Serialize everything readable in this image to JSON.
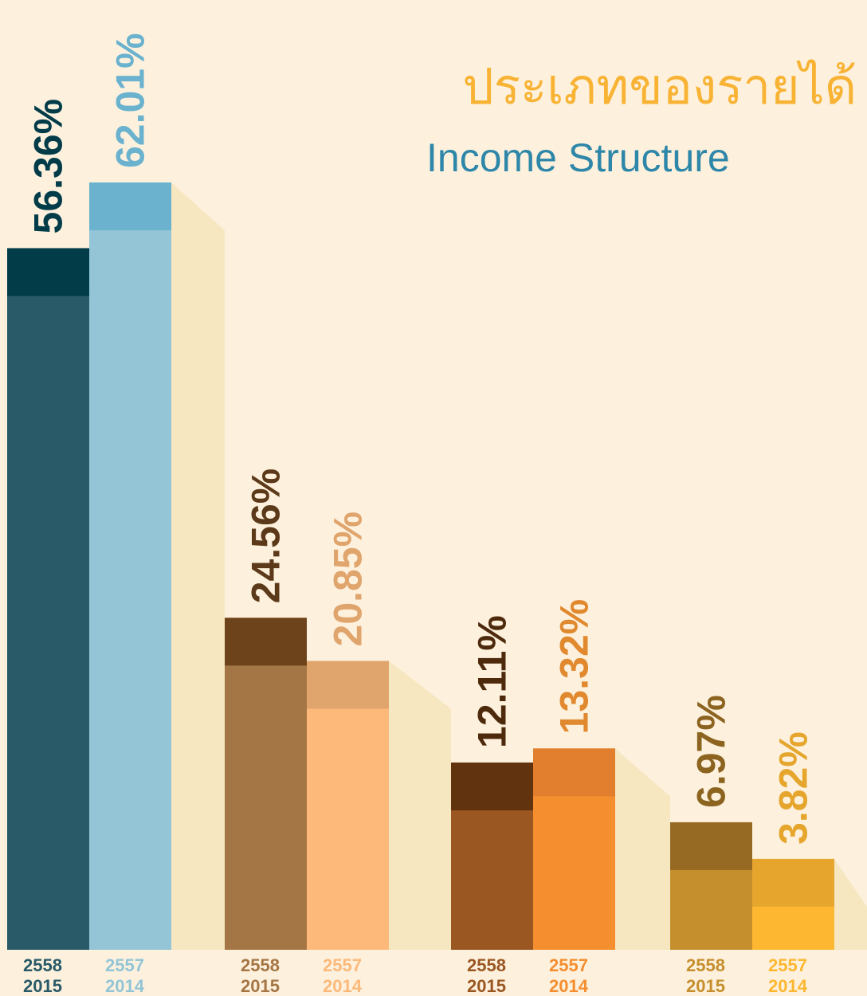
{
  "chart_data": {
    "type": "bar",
    "title": "ประเภทของรายได้",
    "subtitle": "Income Structure",
    "ylim": [
      -4,
      64
    ],
    "title_color": "#f8b334",
    "subtitle_color": "#2e87a8",
    "shadow_color": "#f6e7c1",
    "series": [
      {
        "name": "2558",
        "name_en": "2015",
        "values": [
          56.36,
          24.56,
          12.11,
          6.97
        ],
        "value_labels": [
          "56.36%",
          "24.56%",
          "12.11%",
          "6.97%"
        ],
        "colors": [
          "#285a67",
          "#a57645",
          "#9a5722",
          "#c68f2e"
        ],
        "cap_colors": [
          "#023c49",
          "#6d431b",
          "#62330f",
          "#966a22"
        ],
        "label_colors": [
          "#023c49",
          "#5c3a19",
          "#4e2a0d",
          "#8c6420"
        ]
      },
      {
        "name": "2557",
        "name_en": "2014",
        "values": [
          62.01,
          20.85,
          13.32,
          3.82
        ],
        "value_labels": [
          "62.01%",
          "20.85%",
          "13.32%",
          "3.82%"
        ],
        "colors": [
          "#93c5d6",
          "#fcb97a",
          "#f58e2f",
          "#fdb731"
        ],
        "cap_colors": [
          "#6ab2ce",
          "#e0a46d",
          "#e17f2e",
          "#e6a62e"
        ],
        "label_colors": [
          "#6ab2ce",
          "#e0a46d",
          "#e1892e",
          "#e6a62e"
        ]
      }
    ]
  }
}
